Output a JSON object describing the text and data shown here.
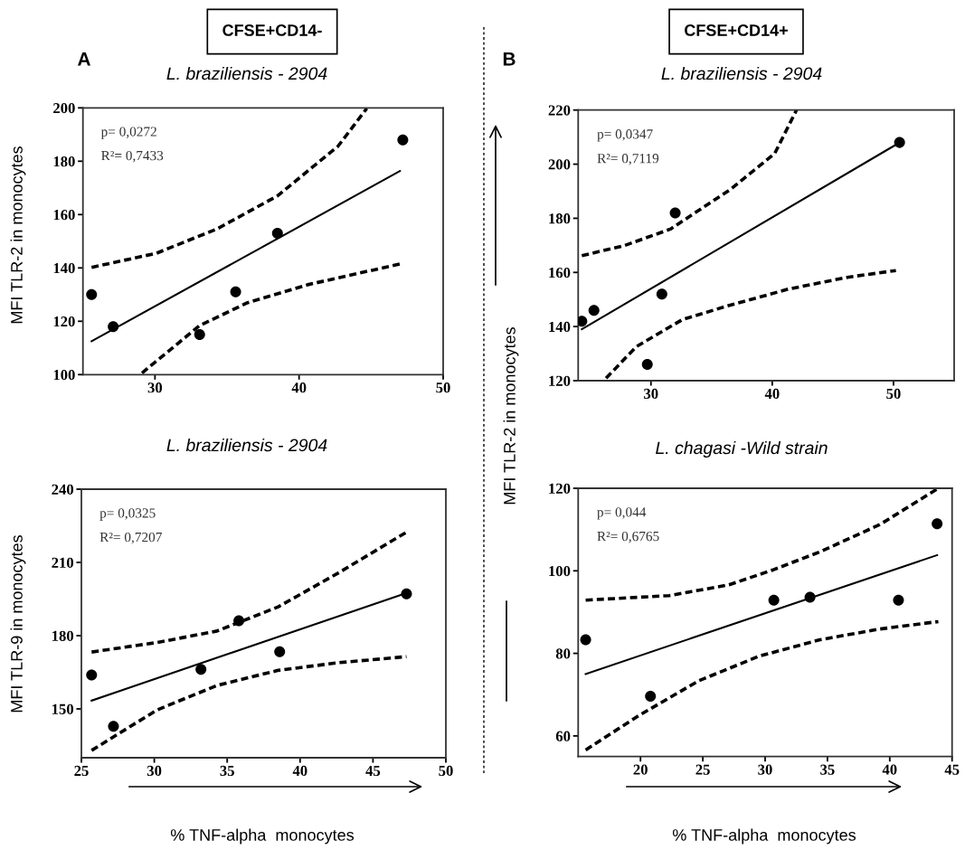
{
  "chart_data": [
    {
      "type": "scatter",
      "title": "L. braziliensis - 2904",
      "ylabel": "MFI TLR-2 in monocytes",
      "annotations": [
        "A",
        "CFSE+CD14-",
        "p= 0,0272",
        "R²= 0,7433"
      ],
      "xlim": [
        25,
        50
      ],
      "xticks": [
        30,
        40,
        50
      ],
      "ylim": [
        100,
        200
      ],
      "yticks": [
        100,
        120,
        140,
        160,
        180,
        200
      ],
      "series": [
        {
          "marker": "circle",
          "color": "#000000",
          "x": [
            25.6,
            27.1,
            33.1,
            35.6,
            38.5,
            47.2
          ],
          "values": [
            130,
            118,
            115,
            131,
            153,
            188
          ]
        },
        {
          "type": "line",
          "line_style": "solid",
          "color": "#000000",
          "x": [
            25.6,
            47.0
          ],
          "values": [
            112.5,
            176.3
          ]
        },
        {
          "type": "line",
          "line_style": "dashed",
          "color": "#000000",
          "x": [
            25.6,
            30.1,
            34.3,
            38.5,
            42.7,
            44.7
          ],
          "values": [
            140.2,
            145.5,
            154.6,
            167,
            185.6,
            199.8
          ]
        },
        {
          "type": "line",
          "line_style": "dashed",
          "color": "#000000",
          "x": [
            29.1,
            33.1,
            36.4,
            40.6,
            44.8,
            47.1
          ],
          "values": [
            100.6,
            118.4,
            126.9,
            133.7,
            138.8,
            141.6
          ]
        }
      ]
    },
    {
      "type": "scatter",
      "title": "L. braziliensis - 2904",
      "ylabel": "MFI TLR-2 in monocytes",
      "annotations": [
        "B",
        "CFSE+CD14+",
        "p= 0,0347",
        "R²= 0,7119"
      ],
      "xlim": [
        24,
        55
      ],
      "xticks": [
        30,
        40,
        50
      ],
      "ylim": [
        120,
        220
      ],
      "yticks": [
        120,
        140,
        160,
        180,
        200,
        220
      ],
      "series": [
        {
          "marker": "circle",
          "color": "#000000",
          "x": [
            24.3,
            25.3,
            29.7,
            30.9,
            32.0,
            50.5
          ],
          "values": [
            142,
            146,
            126,
            152,
            182,
            208
          ]
        },
        {
          "type": "line",
          "line_style": "solid",
          "color": "#000000",
          "x": [
            24.3,
            50.2
          ],
          "values": [
            139,
            207.2
          ]
        },
        {
          "type": "line",
          "line_style": "dashed",
          "color": "#000000",
          "x": [
            24.3,
            27.8,
            31.6,
            36.5,
            40.2,
            42.0
          ],
          "values": [
            166.2,
            169.9,
            176,
            190.5,
            203.9,
            220
          ]
        },
        {
          "type": "line",
          "line_style": "dashed",
          "color": "#000000",
          "x": [
            26.3,
            28.8,
            32.6,
            36.3,
            41.3,
            46.2,
            50.2
          ],
          "values": [
            120.9,
            132.6,
            142.6,
            147.6,
            153.8,
            158.2,
            160.7
          ]
        }
      ]
    },
    {
      "type": "scatter",
      "title": "L. braziliensis - 2904",
      "ylabel": "MFI TLR-9 in monocytes",
      "xlabel": "% TNF-alpha  monocytes",
      "annotations": [
        "p= 0,0325",
        "R²= 0,7207"
      ],
      "xlim": [
        25,
        50
      ],
      "xticks": [
        25,
        30,
        35,
        40,
        45,
        50
      ],
      "ylim": [
        130,
        240
      ],
      "yticks": [
        150,
        180,
        210,
        240
      ],
      "series": [
        {
          "marker": "circle",
          "color": "#000000",
          "x": [
            25.7,
            27.2,
            33.2,
            35.8,
            38.6,
            47.3
          ],
          "values": [
            163.9,
            142.9,
            166.2,
            186.1,
            173.4,
            197.1
          ]
        },
        {
          "type": "line",
          "line_style": "solid",
          "color": "#000000",
          "x": [
            25.7,
            47.3
          ],
          "values": [
            153.4,
            197.5
          ]
        },
        {
          "type": "line",
          "line_style": "dashed",
          "color": "#000000",
          "x": [
            25.7,
            30.2,
            34.3,
            38.5,
            42.6,
            47.3
          ],
          "values": [
            173.3,
            177.2,
            181.9,
            191.8,
            205.6,
            222.4
          ]
        },
        {
          "type": "line",
          "line_style": "dashed",
          "color": "#000000",
          "x": [
            25.7,
            30.2,
            34.3,
            38.5,
            42.6,
            47.3
          ],
          "values": [
            133,
            149.6,
            159.6,
            165.8,
            168.9,
            171.4
          ]
        }
      ]
    },
    {
      "type": "scatter",
      "title": "L. chagasi -Wild strain",
      "xlabel": "% TNF-alpha  monocytes",
      "annotations": [
        "p= 0,044",
        "R²= 0,6765"
      ],
      "xlim": [
        15,
        45
      ],
      "xticks": [
        20,
        25,
        30,
        35,
        40,
        45
      ],
      "ylim": [
        55,
        120
      ],
      "yticks": [
        60,
        80,
        100,
        120
      ],
      "series": [
        {
          "marker": "circle",
          "color": "#000000",
          "x": [
            15.6,
            20.8,
            30.7,
            33.6,
            40.7,
            43.8
          ],
          "values": [
            83.3,
            69.6,
            92.9,
            93.6,
            92.9,
            111.4
          ]
        },
        {
          "type": "line",
          "line_style": "solid",
          "color": "#000000",
          "x": [
            15.6,
            43.8
          ],
          "values": [
            75.0,
            103.8
          ]
        },
        {
          "type": "line",
          "line_style": "dashed",
          "color": "#000000",
          "x": [
            15.6,
            22.3,
            27.1,
            30.7,
            34.4,
            39.2,
            43.9
          ],
          "values": [
            92.9,
            94.0,
            96.6,
            100.3,
            104.6,
            111.2,
            120
          ]
        },
        {
          "type": "line",
          "line_style": "dashed",
          "color": "#000000",
          "x": [
            15.6,
            19.9,
            24.7,
            29.5,
            34.4,
            39.2,
            43.9
          ],
          "values": [
            56.6,
            65,
            73.4,
            79.3,
            83.3,
            85.9,
            87.7
          ]
        }
      ]
    }
  ]
}
